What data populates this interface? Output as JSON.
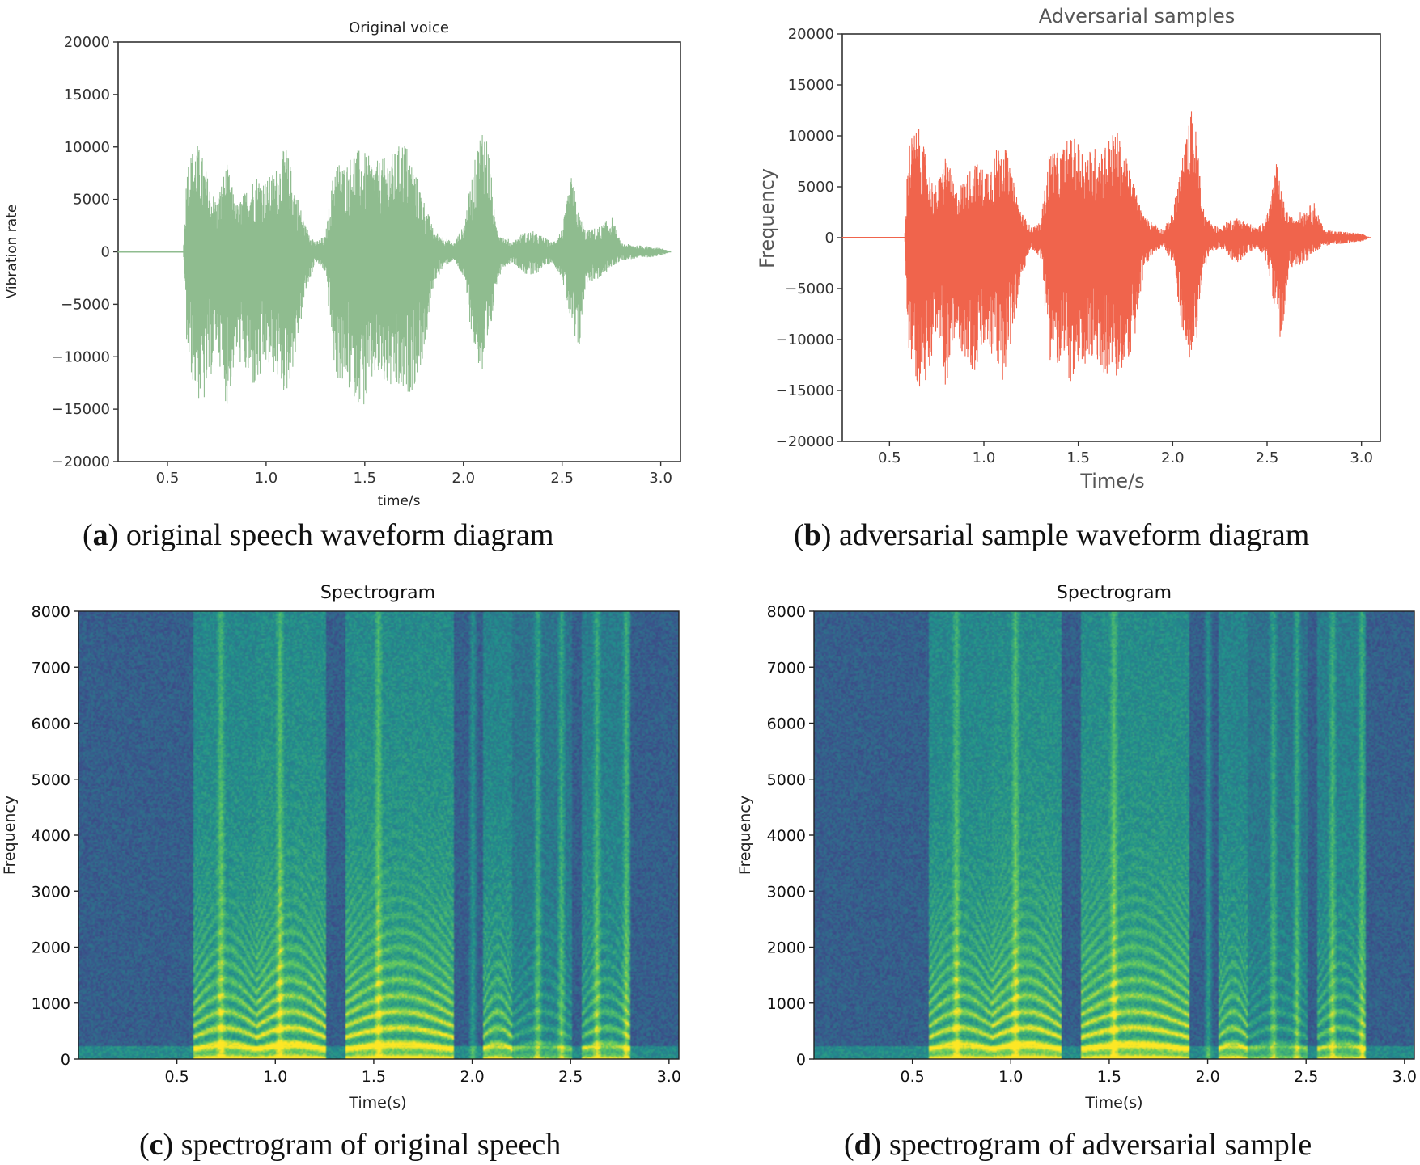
{
  "chart_data": [
    {
      "type": "line",
      "panel": "a",
      "title": "Original voice",
      "xlabel": "time/s",
      "ylabel": "Vibration rate",
      "xlim": [
        0.25,
        3.1
      ],
      "ylim": [
        -20000,
        20000
      ],
      "xticks": [
        "0.5",
        "1.0",
        "1.5",
        "2.0",
        "2.5",
        "3.0"
      ],
      "yticks": [
        "20000",
        "15000",
        "10000",
        "5000",
        "0",
        "−5000",
        "−10000",
        "−15000",
        "−20000"
      ],
      "color": "#8fbc8f",
      "series": [
        {
          "name": "waveform",
          "x": [
            0.25,
            0.58,
            0.6,
            0.65,
            0.68,
            0.72,
            0.75,
            0.8,
            0.85,
            0.9,
            0.95,
            1.0,
            1.05,
            1.1,
            1.15,
            1.2,
            1.25,
            1.3,
            1.35,
            1.4,
            1.45,
            1.5,
            1.55,
            1.6,
            1.65,
            1.7,
            1.75,
            1.8,
            1.85,
            1.9,
            1.95,
            2.0,
            2.05,
            2.1,
            2.13,
            2.16,
            2.2,
            2.25,
            2.3,
            2.35,
            2.4,
            2.45,
            2.5,
            2.55,
            2.58,
            2.62,
            2.7,
            2.75,
            2.8,
            2.9,
            3.0,
            3.05
          ],
          "upper": [
            0,
            0,
            9000,
            10500,
            9000,
            6000,
            5000,
            8500,
            4500,
            6000,
            7500,
            6800,
            8000,
            10200,
            6000,
            2500,
            1000,
            1500,
            9000,
            8200,
            10000,
            9500,
            8600,
            9000,
            9500,
            11000,
            8000,
            5000,
            2000,
            1500,
            800,
            2500,
            8000,
            13000,
            10000,
            3000,
            1500,
            1000,
            1800,
            2000,
            1500,
            900,
            2200,
            7500,
            4000,
            2000,
            2500,
            3500,
            800,
            600,
            400,
            0
          ],
          "lower": [
            0,
            0,
            -10500,
            -14000,
            -15000,
            -12000,
            -9000,
            -15000,
            -10000,
            -12000,
            -13500,
            -11000,
            -12000,
            -14000,
            -10000,
            -4000,
            -1000,
            -2000,
            -12000,
            -13000,
            -14000,
            -15000,
            -12000,
            -13000,
            -13500,
            -14000,
            -13000,
            -10000,
            -3000,
            -1500,
            -800,
            -2500,
            -9000,
            -12500,
            -10000,
            -3500,
            -1500,
            -1000,
            -2000,
            -2500,
            -1500,
            -1000,
            -2500,
            -7500,
            -11000,
            -3000,
            -2500,
            -1500,
            -800,
            -600,
            -400,
            0
          ]
        }
      ]
    },
    {
      "type": "line",
      "panel": "b",
      "title": "Adversarial samples",
      "xlabel": "Time/s",
      "ylabel": "Frequency",
      "xlim": [
        0.25,
        3.1
      ],
      "ylim": [
        -20000,
        20000
      ],
      "xticks": [
        "0.5",
        "1.0",
        "1.5",
        "2.0",
        "2.5",
        "3.0"
      ],
      "yticks": [
        "20000",
        "15000",
        "10000",
        "5000",
        "0",
        "−5000",
        "−10000",
        "−15000",
        "−20000"
      ],
      "color": "#f0644c",
      "series": [
        {
          "name": "waveform",
          "x": [
            0.25,
            0.58,
            0.6,
            0.65,
            0.68,
            0.72,
            0.75,
            0.8,
            0.85,
            0.9,
            0.95,
            1.0,
            1.05,
            1.1,
            1.15,
            1.2,
            1.25,
            1.3,
            1.35,
            1.4,
            1.45,
            1.5,
            1.55,
            1.6,
            1.65,
            1.7,
            1.75,
            1.8,
            1.85,
            1.9,
            1.95,
            2.0,
            2.05,
            2.1,
            2.13,
            2.16,
            2.2,
            2.25,
            2.3,
            2.35,
            2.4,
            2.45,
            2.5,
            2.55,
            2.58,
            2.62,
            2.7,
            2.75,
            2.8,
            2.9,
            3.0,
            3.05
          ],
          "upper": [
            0,
            0,
            9500,
            11000,
            9000,
            6000,
            5000,
            8500,
            4500,
            6000,
            7500,
            6800,
            8000,
            10200,
            6000,
            2500,
            1000,
            1500,
            9000,
            8200,
            10000,
            9500,
            8600,
            9000,
            9500,
            10800,
            8000,
            5000,
            2000,
            1500,
            800,
            2500,
            8000,
            12800,
            10000,
            3000,
            1500,
            1000,
            1800,
            2000,
            1500,
            900,
            2200,
            7600,
            4000,
            2000,
            2800,
            3500,
            800,
            600,
            400,
            0
          ],
          "lower": [
            0,
            0,
            -11000,
            -14500,
            -15000,
            -12000,
            -9000,
            -15000,
            -10000,
            -12000,
            -13500,
            -11000,
            -12000,
            -14000,
            -10000,
            -4000,
            -1000,
            -2000,
            -12000,
            -13000,
            -14000,
            -15000,
            -12000,
            -13000,
            -13500,
            -14000,
            -13000,
            -10000,
            -3000,
            -1500,
            -800,
            -2500,
            -9000,
            -12500,
            -10000,
            -3500,
            -1500,
            -1000,
            -2000,
            -2500,
            -1500,
            -1000,
            -2500,
            -8000,
            -11000,
            -3000,
            -2500,
            -1500,
            -800,
            -600,
            -400,
            0
          ]
        }
      ]
    },
    {
      "type": "heatmap",
      "panel": "c",
      "title": "Spectrogram",
      "xlabel": "Time(s)",
      "ylabel": "Frequency",
      "xlim": [
        0,
        3.05
      ],
      "ylim": [
        0,
        8000
      ],
      "xticks": [
        "0.5",
        "1.0",
        "1.5",
        "2.0",
        "2.5",
        "3.0"
      ],
      "yticks": [
        "8000",
        "7000",
        "6000",
        "5000",
        "4000",
        "3000",
        "2000",
        "1000",
        "0"
      ],
      "colormap": "viridis",
      "segments": [
        {
          "start": 0.58,
          "end": 0.9,
          "strength": 0.9
        },
        {
          "start": 0.9,
          "end": 1.25,
          "strength": 1.0
        },
        {
          "start": 1.35,
          "end": 1.9,
          "strength": 1.0
        },
        {
          "start": 2.05,
          "end": 2.2,
          "strength": 0.8
        },
        {
          "start": 2.2,
          "end": 2.5,
          "strength": 0.45
        },
        {
          "start": 2.55,
          "end": 2.8,
          "strength": 0.65
        }
      ],
      "streaks": [
        0.72,
        1.02,
        1.52,
        2.0,
        2.33,
        2.45,
        2.63,
        2.78
      ]
    },
    {
      "type": "heatmap",
      "panel": "d",
      "title": "Spectrogram",
      "xlabel": "Time(s)",
      "ylabel": "Frequency",
      "xlim": [
        0,
        3.05
      ],
      "ylim": [
        0,
        8000
      ],
      "xticks": [
        "0.5",
        "1.0",
        "1.5",
        "2.0",
        "2.5",
        "3.0"
      ],
      "yticks": [
        "8000",
        "7000",
        "6000",
        "5000",
        "4000",
        "3000",
        "2000",
        "1000",
        "0"
      ],
      "colormap": "viridis",
      "segments": [
        {
          "start": 0.58,
          "end": 0.9,
          "strength": 0.9
        },
        {
          "start": 0.9,
          "end": 1.25,
          "strength": 1.0
        },
        {
          "start": 1.35,
          "end": 1.9,
          "strength": 1.0
        },
        {
          "start": 2.05,
          "end": 2.2,
          "strength": 0.8
        },
        {
          "start": 2.2,
          "end": 2.5,
          "strength": 0.45
        },
        {
          "start": 2.55,
          "end": 2.8,
          "strength": 0.65
        }
      ],
      "streaks": [
        0.72,
        1.02,
        1.52,
        2.0,
        2.33,
        2.45,
        2.63,
        2.78
      ]
    }
  ],
  "captions": [
    {
      "label": "a",
      "text": " original speech waveform diagram"
    },
    {
      "label": "b",
      "text": " adversarial sample waveform diagram"
    },
    {
      "label": "c",
      "text": " spectrogram of original speech"
    },
    {
      "label": "d",
      "text": " spectrogram of adversarial sample"
    }
  ]
}
